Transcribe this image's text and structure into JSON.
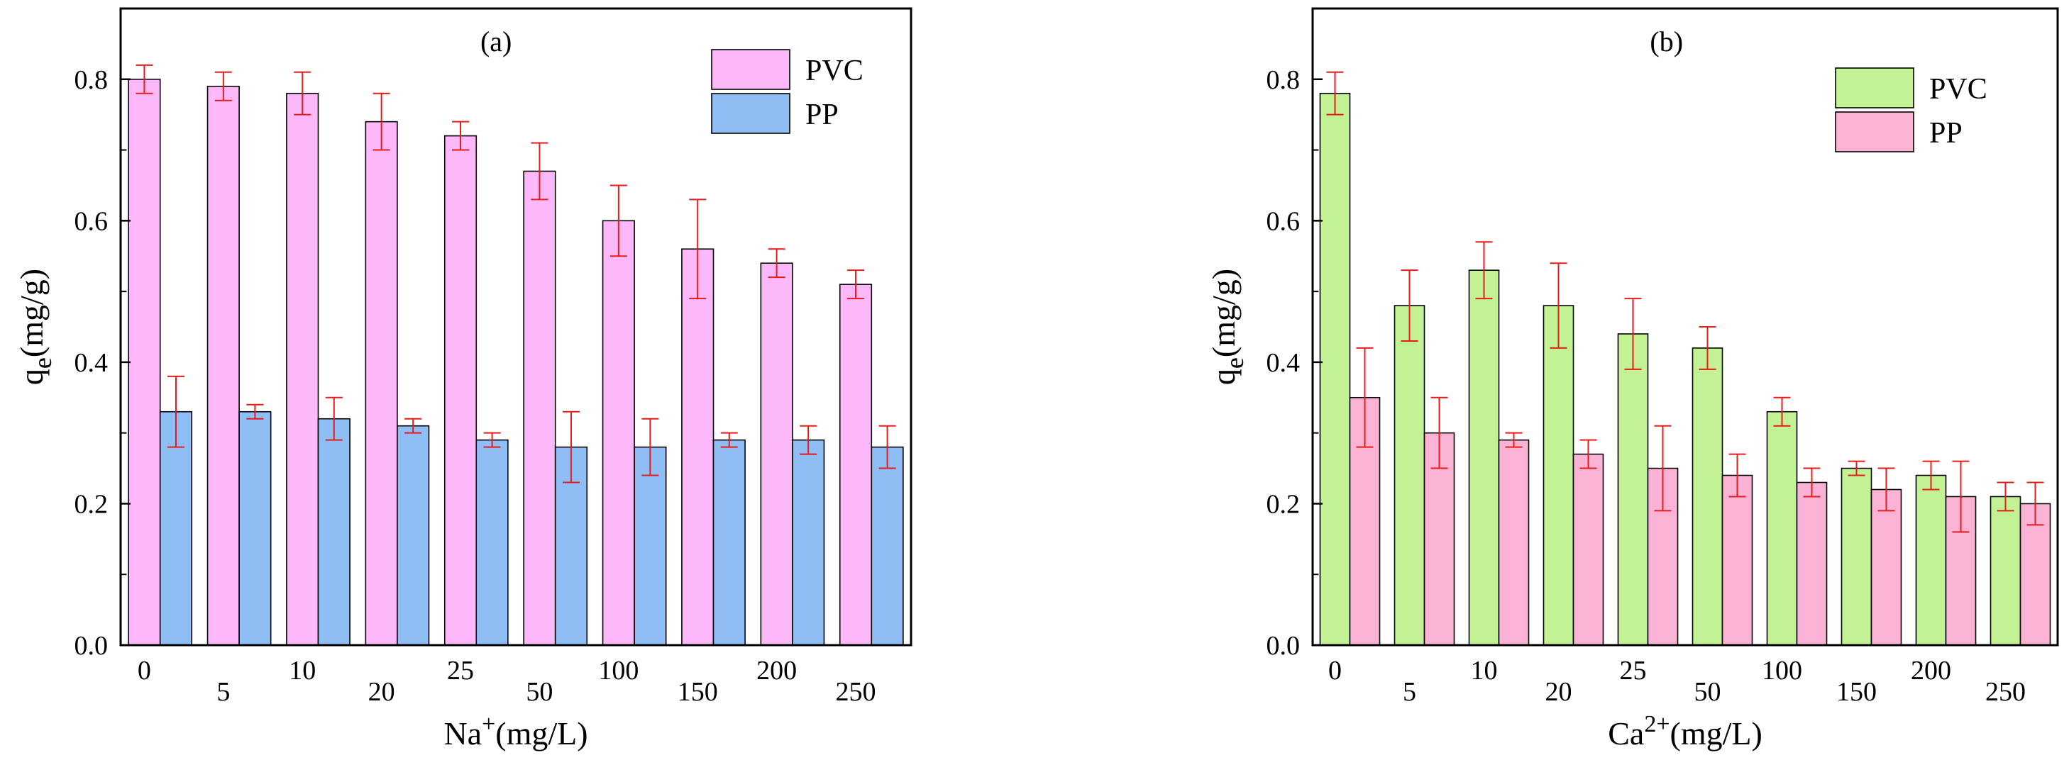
{
  "colors": {
    "pvc_a": "#fcb8f9",
    "pp_a": "#8fbef5",
    "pvc_b": "#c3f295",
    "pp_b": "#fbb3d5",
    "error_bar": "#e51c1c",
    "outline": "#000000"
  },
  "chart_data": [
    {
      "type": "bar",
      "title": "(a)",
      "xlabel_main": "Na",
      "xlabel_sup": "+",
      "xlabel_tail": "(mg/L)",
      "ylabel_main": "q",
      "ylabel_sub": "e",
      "ylabel_tail": "(mg/g)",
      "categories": [
        "0",
        "5",
        "10",
        "20",
        "25",
        "50",
        "100",
        "150",
        "200",
        "250"
      ],
      "ylim": [
        0,
        0.9
      ],
      "yticks": [
        "0.0",
        "0.2",
        "0.4",
        "0.6",
        "0.8"
      ],
      "legend_position": "top-right",
      "series": [
        {
          "name": "PVC",
          "values": [
            0.8,
            0.79,
            0.78,
            0.74,
            0.72,
            0.67,
            0.6,
            0.56,
            0.54,
            0.51
          ],
          "errors": [
            0.02,
            0.02,
            0.03,
            0.04,
            0.02,
            0.04,
            0.05,
            0.07,
            0.02,
            0.02
          ]
        },
        {
          "name": "PP",
          "values": [
            0.33,
            0.33,
            0.32,
            0.31,
            0.29,
            0.28,
            0.28,
            0.29,
            0.29,
            0.28
          ],
          "errors": [
            0.05,
            0.01,
            0.03,
            0.01,
            0.01,
            0.05,
            0.04,
            0.01,
            0.02,
            0.03
          ]
        }
      ]
    },
    {
      "type": "bar",
      "title": "(b)",
      "xlabel_main": "Ca",
      "xlabel_sup": "2+",
      "xlabel_tail": "(mg/L)",
      "ylabel_main": "q",
      "ylabel_sub": "e",
      "ylabel_tail": "(mg/g)",
      "categories": [
        "0",
        "5",
        "10",
        "20",
        "25",
        "50",
        "100",
        "150",
        "200",
        "250"
      ],
      "ylim": [
        0,
        0.9
      ],
      "yticks": [
        "0.0",
        "0.2",
        "0.4",
        "0.6",
        "0.8"
      ],
      "legend_position": "top-right",
      "series": [
        {
          "name": "PVC",
          "values": [
            0.78,
            0.48,
            0.53,
            0.48,
            0.44,
            0.42,
            0.33,
            0.25,
            0.24,
            0.21
          ],
          "errors": [
            0.03,
            0.05,
            0.04,
            0.06,
            0.05,
            0.03,
            0.02,
            0.01,
            0.02,
            0.02
          ]
        },
        {
          "name": "PP",
          "values": [
            0.35,
            0.3,
            0.29,
            0.27,
            0.25,
            0.24,
            0.23,
            0.22,
            0.21,
            0.2
          ],
          "errors": [
            0.07,
            0.05,
            0.01,
            0.02,
            0.06,
            0.03,
            0.02,
            0.03,
            0.05,
            0.03
          ]
        }
      ]
    }
  ]
}
